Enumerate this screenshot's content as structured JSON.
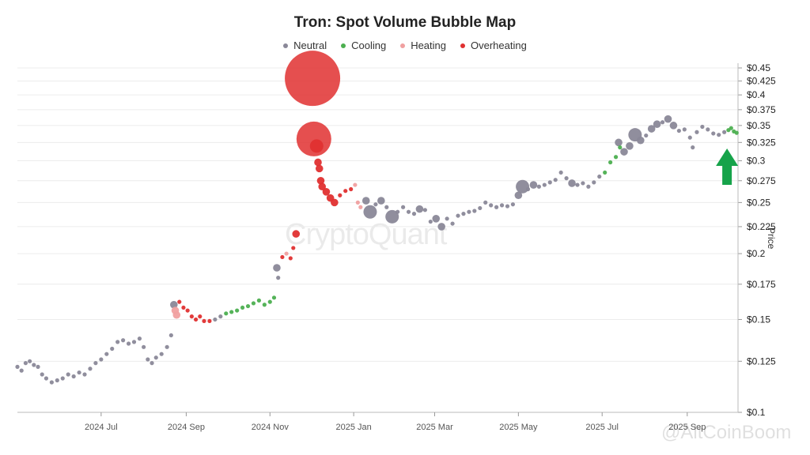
{
  "chart_data": {
    "type": "scatter",
    "title": "Tron: Spot Volume Bubble Map",
    "ylabel": "Price",
    "yscale": "log",
    "ylim": [
      0.1,
      0.45
    ],
    "y_ticks": [
      "$0.45",
      "$0.425",
      "$0.4",
      "$0.375",
      "$0.35",
      "$0.325",
      "$0.3",
      "$0.275",
      "$0.25",
      "$0.225",
      "$0.2",
      "$0.175",
      "$0.15",
      "$0.125",
      "$0.1"
    ],
    "y_tick_values": [
      0.45,
      0.425,
      0.4,
      0.375,
      0.35,
      0.325,
      0.3,
      0.275,
      0.25,
      0.225,
      0.2,
      0.175,
      0.15,
      0.125,
      0.1
    ],
    "x_ticks": [
      "2024 Jul",
      "2024 Sep",
      "2024 Nov",
      "2025 Jan",
      "2025 Mar",
      "2025 May",
      "2025 Jul",
      "2025 Sep"
    ],
    "xlim": [
      "2024-05-01",
      "2025-10-08"
    ],
    "grid": "horizontal",
    "legend_position": "top-center",
    "categories": [
      {
        "name": "Neutral",
        "color": "#8a8898"
      },
      {
        "name": "Cooling",
        "color": "#4caf50"
      },
      {
        "name": "Heating",
        "color": "#f0a0a0"
      },
      {
        "name": "Overheating",
        "color": "#e03030"
      }
    ],
    "points": [
      [
        "2024-05-01",
        0.122,
        "Neutral",
        1
      ],
      [
        "2024-05-04",
        0.12,
        "Neutral",
        1
      ],
      [
        "2024-05-07",
        0.124,
        "Neutral",
        1
      ],
      [
        "2024-05-10",
        0.125,
        "Neutral",
        1
      ],
      [
        "2024-05-13",
        0.123,
        "Neutral",
        1
      ],
      [
        "2024-05-16",
        0.122,
        "Neutral",
        1
      ],
      [
        "2024-05-19",
        0.118,
        "Neutral",
        1
      ],
      [
        "2024-05-22",
        0.116,
        "Neutral",
        1
      ],
      [
        "2024-05-26",
        0.114,
        "Neutral",
        1
      ],
      [
        "2024-05-30",
        0.115,
        "Neutral",
        1
      ],
      [
        "2024-06-03",
        0.116,
        "Neutral",
        1
      ],
      [
        "2024-06-07",
        0.118,
        "Neutral",
        1
      ],
      [
        "2024-06-11",
        0.117,
        "Neutral",
        1
      ],
      [
        "2024-06-15",
        0.119,
        "Neutral",
        1
      ],
      [
        "2024-06-19",
        0.118,
        "Neutral",
        1
      ],
      [
        "2024-06-23",
        0.121,
        "Neutral",
        1
      ],
      [
        "2024-06-27",
        0.124,
        "Neutral",
        1
      ],
      [
        "2024-07-01",
        0.126,
        "Neutral",
        1
      ],
      [
        "2024-07-05",
        0.129,
        "Neutral",
        1
      ],
      [
        "2024-07-09",
        0.132,
        "Neutral",
        1
      ],
      [
        "2024-07-13",
        0.136,
        "Neutral",
        1
      ],
      [
        "2024-07-17",
        0.137,
        "Neutral",
        1
      ],
      [
        "2024-07-21",
        0.135,
        "Neutral",
        1
      ],
      [
        "2024-07-25",
        0.136,
        "Neutral",
        1
      ],
      [
        "2024-07-29",
        0.138,
        "Neutral",
        1
      ],
      [
        "2024-08-01",
        0.133,
        "Neutral",
        1
      ],
      [
        "2024-08-04",
        0.126,
        "Neutral",
        1
      ],
      [
        "2024-08-07",
        0.124,
        "Neutral",
        1
      ],
      [
        "2024-08-10",
        0.127,
        "Neutral",
        1
      ],
      [
        "2024-08-14",
        0.129,
        "Neutral",
        1
      ],
      [
        "2024-08-18",
        0.133,
        "Neutral",
        1
      ],
      [
        "2024-08-21",
        0.14,
        "Neutral",
        1
      ],
      [
        "2024-08-23",
        0.16,
        "Neutral",
        2
      ],
      [
        "2024-08-24",
        0.156,
        "Heating",
        2
      ],
      [
        "2024-08-25",
        0.153,
        "Heating",
        2
      ],
      [
        "2024-08-27",
        0.162,
        "Overheating",
        1
      ],
      [
        "2024-08-30",
        0.158,
        "Overheating",
        1
      ],
      [
        "2024-09-02",
        0.156,
        "Overheating",
        1
      ],
      [
        "2024-09-05",
        0.152,
        "Overheating",
        1
      ],
      [
        "2024-09-08",
        0.15,
        "Overheating",
        1
      ],
      [
        "2024-09-11",
        0.152,
        "Overheating",
        1
      ],
      [
        "2024-09-14",
        0.149,
        "Overheating",
        1
      ],
      [
        "2024-09-18",
        0.149,
        "Overheating",
        1
      ],
      [
        "2024-09-22",
        0.15,
        "Neutral",
        1
      ],
      [
        "2024-09-26",
        0.152,
        "Neutral",
        1
      ],
      [
        "2024-09-30",
        0.154,
        "Cooling",
        1
      ],
      [
        "2024-10-04",
        0.155,
        "Cooling",
        1
      ],
      [
        "2024-10-08",
        0.156,
        "Cooling",
        1
      ],
      [
        "2024-10-12",
        0.158,
        "Cooling",
        1
      ],
      [
        "2024-10-16",
        0.159,
        "Cooling",
        1
      ],
      [
        "2024-10-20",
        0.161,
        "Cooling",
        1
      ],
      [
        "2024-10-24",
        0.163,
        "Cooling",
        1
      ],
      [
        "2024-10-28",
        0.16,
        "Cooling",
        1
      ],
      [
        "2024-11-01",
        0.162,
        "Cooling",
        1
      ],
      [
        "2024-11-04",
        0.165,
        "Cooling",
        1
      ],
      [
        "2024-11-06",
        0.188,
        "Neutral",
        2
      ],
      [
        "2024-11-07",
        0.18,
        "Neutral",
        1
      ],
      [
        "2024-11-10",
        0.197,
        "Overheating",
        1
      ],
      [
        "2024-11-13",
        0.2,
        "Heating",
        1
      ],
      [
        "2024-11-16",
        0.196,
        "Overheating",
        1
      ],
      [
        "2024-11-18",
        0.205,
        "Overheating",
        1
      ],
      [
        "2024-11-20",
        0.218,
        "Overheating",
        2
      ],
      [
        "2024-12-02",
        0.43,
        "Overheating",
        5
      ],
      [
        "2024-12-03",
        0.33,
        "Overheating",
        4
      ],
      [
        "2024-12-05",
        0.32,
        "Overheating",
        3
      ],
      [
        "2024-12-06",
        0.298,
        "Overheating",
        2
      ],
      [
        "2024-12-07",
        0.29,
        "Overheating",
        2
      ],
      [
        "2024-12-08",
        0.275,
        "Overheating",
        2
      ],
      [
        "2024-12-09",
        0.268,
        "Overheating",
        2
      ],
      [
        "2024-12-12",
        0.262,
        "Overheating",
        2
      ],
      [
        "2024-12-15",
        0.255,
        "Overheating",
        2
      ],
      [
        "2024-12-18",
        0.25,
        "Overheating",
        2
      ],
      [
        "2024-12-22",
        0.258,
        "Overheating",
        1
      ],
      [
        "2024-12-26",
        0.263,
        "Overheating",
        1
      ],
      [
        "2024-12-30",
        0.265,
        "Overheating",
        1
      ],
      [
        "2025-01-02",
        0.27,
        "Heating",
        1
      ],
      [
        "2025-01-04",
        0.25,
        "Heating",
        1
      ],
      [
        "2025-01-06",
        0.245,
        "Heating",
        1
      ],
      [
        "2025-01-10",
        0.252,
        "Neutral",
        2
      ],
      [
        "2025-01-13",
        0.24,
        "Neutral",
        3
      ],
      [
        "2025-01-17",
        0.248,
        "Neutral",
        1
      ],
      [
        "2025-01-21",
        0.252,
        "Neutral",
        2
      ],
      [
        "2025-01-25",
        0.245,
        "Neutral",
        1
      ],
      [
        "2025-01-29",
        0.235,
        "Neutral",
        3
      ],
      [
        "2025-02-02",
        0.24,
        "Neutral",
        1
      ],
      [
        "2025-02-06",
        0.245,
        "Neutral",
        1
      ],
      [
        "2025-02-10",
        0.24,
        "Neutral",
        1
      ],
      [
        "2025-02-14",
        0.238,
        "Neutral",
        1
      ],
      [
        "2025-02-18",
        0.243,
        "Neutral",
        2
      ],
      [
        "2025-02-22",
        0.242,
        "Neutral",
        1
      ],
      [
        "2025-02-26",
        0.23,
        "Neutral",
        1
      ],
      [
        "2025-03-02",
        0.233,
        "Neutral",
        2
      ],
      [
        "2025-03-06",
        0.225,
        "Neutral",
        2
      ],
      [
        "2025-03-10",
        0.233,
        "Neutral",
        1
      ],
      [
        "2025-03-14",
        0.228,
        "Neutral",
        1
      ],
      [
        "2025-03-18",
        0.236,
        "Neutral",
        1
      ],
      [
        "2025-03-22",
        0.238,
        "Neutral",
        1
      ],
      [
        "2025-03-26",
        0.24,
        "Neutral",
        1
      ],
      [
        "2025-03-30",
        0.241,
        "Neutral",
        1
      ],
      [
        "2025-04-03",
        0.244,
        "Neutral",
        1
      ],
      [
        "2025-04-07",
        0.25,
        "Neutral",
        1
      ],
      [
        "2025-04-11",
        0.247,
        "Neutral",
        1
      ],
      [
        "2025-04-15",
        0.245,
        "Neutral",
        1
      ],
      [
        "2025-04-19",
        0.247,
        "Neutral",
        1
      ],
      [
        "2025-04-23",
        0.246,
        "Neutral",
        1
      ],
      [
        "2025-04-27",
        0.248,
        "Neutral",
        1
      ],
      [
        "2025-05-01",
        0.258,
        "Neutral",
        2
      ],
      [
        "2025-05-04",
        0.268,
        "Neutral",
        3
      ],
      [
        "2025-05-08",
        0.265,
        "Neutral",
        1
      ],
      [
        "2025-05-12",
        0.27,
        "Neutral",
        2
      ],
      [
        "2025-05-16",
        0.268,
        "Neutral",
        1
      ],
      [
        "2025-05-20",
        0.27,
        "Neutral",
        1
      ],
      [
        "2025-05-24",
        0.273,
        "Neutral",
        1
      ],
      [
        "2025-05-28",
        0.276,
        "Neutral",
        1
      ],
      [
        "2025-06-01",
        0.285,
        "Neutral",
        1
      ],
      [
        "2025-06-05",
        0.278,
        "Neutral",
        1
      ],
      [
        "2025-06-09",
        0.272,
        "Neutral",
        2
      ],
      [
        "2025-06-13",
        0.27,
        "Neutral",
        1
      ],
      [
        "2025-06-17",
        0.272,
        "Neutral",
        1
      ],
      [
        "2025-06-21",
        0.268,
        "Neutral",
        1
      ],
      [
        "2025-06-25",
        0.273,
        "Neutral",
        1
      ],
      [
        "2025-06-29",
        0.28,
        "Neutral",
        1
      ],
      [
        "2025-07-03",
        0.285,
        "Cooling",
        1
      ],
      [
        "2025-07-07",
        0.298,
        "Cooling",
        1
      ],
      [
        "2025-07-11",
        0.305,
        "Cooling",
        1
      ],
      [
        "2025-07-14",
        0.318,
        "Cooling",
        1
      ],
      [
        "2025-07-13",
        0.325,
        "Neutral",
        2
      ],
      [
        "2025-07-17",
        0.312,
        "Neutral",
        2
      ],
      [
        "2025-07-21",
        0.32,
        "Neutral",
        2
      ],
      [
        "2025-07-25",
        0.336,
        "Neutral",
        3
      ],
      [
        "2025-07-29",
        0.328,
        "Neutral",
        2
      ],
      [
        "2025-08-02",
        0.335,
        "Neutral",
        1
      ],
      [
        "2025-08-06",
        0.345,
        "Neutral",
        2
      ],
      [
        "2025-08-10",
        0.352,
        "Neutral",
        2
      ],
      [
        "2025-08-14",
        0.355,
        "Neutral",
        1
      ],
      [
        "2025-08-18",
        0.36,
        "Neutral",
        2
      ],
      [
        "2025-08-22",
        0.35,
        "Neutral",
        2
      ],
      [
        "2025-08-26",
        0.342,
        "Neutral",
        1
      ],
      [
        "2025-08-30",
        0.344,
        "Neutral",
        1
      ],
      [
        "2025-09-03",
        0.332,
        "Neutral",
        1
      ],
      [
        "2025-09-05",
        0.318,
        "Neutral",
        1
      ],
      [
        "2025-09-08",
        0.34,
        "Neutral",
        1
      ],
      [
        "2025-09-12",
        0.348,
        "Neutral",
        1
      ],
      [
        "2025-09-16",
        0.344,
        "Neutral",
        1
      ],
      [
        "2025-09-20",
        0.338,
        "Neutral",
        1
      ],
      [
        "2025-09-24",
        0.336,
        "Neutral",
        1
      ],
      [
        "2025-09-28",
        0.34,
        "Neutral",
        1
      ],
      [
        "2025-10-01",
        0.343,
        "Cooling",
        1
      ],
      [
        "2025-10-03",
        0.346,
        "Cooling",
        1
      ],
      [
        "2025-10-05",
        0.341,
        "Cooling",
        1
      ],
      [
        "2025-10-07",
        0.339,
        "Cooling",
        1
      ]
    ],
    "annotation": {
      "type": "up-arrow",
      "color": "#16a34a"
    }
  },
  "watermark": "CryptoQuant",
  "credit": "@AltCoinBoom"
}
